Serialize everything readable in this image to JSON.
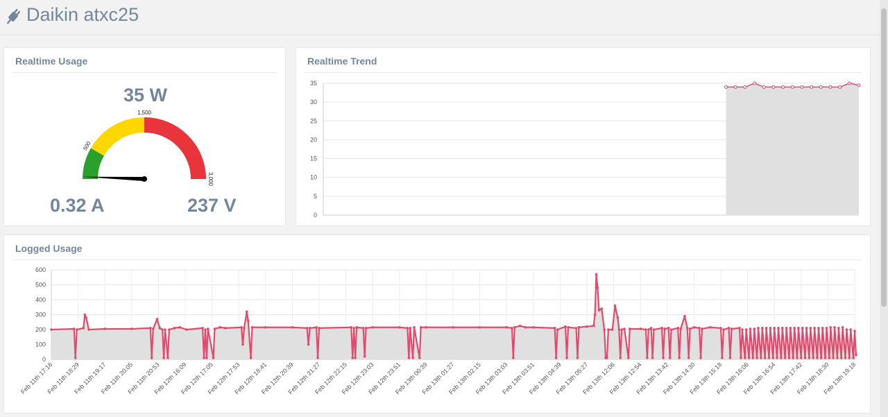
{
  "app": {
    "title": "Daikin atxc25"
  },
  "panels": {
    "usage": "Realtime Usage",
    "trend": "Realtime Trend",
    "logged": "Logged Usage"
  },
  "gauge": {
    "power": "35 W",
    "current": "0.32 A",
    "voltage": "237 V",
    "value": 35,
    "min": 0,
    "max": 3000,
    "bands": [
      {
        "from": 0,
        "to": 500,
        "color": "#2ca02c"
      },
      {
        "from": 500,
        "to": 1500,
        "color": "#ffd700"
      },
      {
        "from": 1500,
        "to": 3000,
        "color": "#e8343b"
      }
    ],
    "ticks": [
      "500",
      "1,500",
      "3,000"
    ]
  },
  "chart_data": [
    {
      "type": "area",
      "name": "realtime-trend",
      "ylim": [
        0,
        35
      ],
      "yticks": [
        0,
        5,
        10,
        15,
        20,
        25,
        30,
        35
      ],
      "grid": true,
      "series_color": "#e24a6b",
      "fill_color": "#e0e0e0",
      "x_start_fraction": 0.752,
      "values": [
        34,
        34,
        34,
        35,
        34,
        34,
        34,
        34,
        34,
        34,
        34,
        34,
        34,
        35,
        34.5
      ]
    },
    {
      "type": "area",
      "name": "logged-usage",
      "ylim": [
        0,
        600
      ],
      "yticks": [
        0,
        100,
        200,
        300,
        400,
        500,
        600
      ],
      "grid": true,
      "series_color": "#e24a6b",
      "fill_color": "#e0e0e0",
      "categories": [
        "Feb 11th 17:16",
        "Feb 11th 18:29",
        "Feb 11th 19:17",
        "Feb 11th 20:05",
        "Feb 11th 20:53",
        "Feb 12th 16:09",
        "Feb 12th 17:05",
        "Feb 12th 17:53",
        "Feb 12th 18:41",
        "Feb 12th 20:39",
        "Feb 12th 21:27",
        "Feb 12th 22:15",
        "Feb 12th 23:03",
        "Feb 12th 23:51",
        "Feb 13th 00:39",
        "Feb 13th 01:27",
        "Feb 13th 02:15",
        "Feb 13th 03:03",
        "Feb 13th 03:51",
        "Feb 13th 04:39",
        "Feb 13th 05:27",
        "Feb 13th 12:06",
        "Feb 13th 12:54",
        "Feb 13th 13:42",
        "Feb 13th 14:30",
        "Feb 13th 15:18",
        "Feb 13th 16:06",
        "Feb 13th 16:54",
        "Feb 13th 17:42",
        "Feb 13th 18:30",
        "Feb 13th 19:18"
      ],
      "points": [
        [
          0,
          200
        ],
        [
          0.85,
          205
        ],
        [
          0.9,
          10
        ],
        [
          0.95,
          200
        ],
        [
          1.2,
          210
        ],
        [
          1.25,
          300
        ],
        [
          1.3,
          280
        ],
        [
          1.4,
          200
        ],
        [
          2,
          205
        ],
        [
          3,
          205
        ],
        [
          3.7,
          210
        ],
        [
          3.75,
          10
        ],
        [
          3.8,
          205
        ],
        [
          3.95,
          270
        ],
        [
          4.05,
          210
        ],
        [
          4.15,
          200
        ],
        [
          4.2,
          10
        ],
        [
          4.25,
          200
        ],
        [
          4.35,
          10
        ],
        [
          4.4,
          200
        ],
        [
          4.6,
          210
        ],
        [
          4.8,
          215
        ],
        [
          5.05,
          200
        ],
        [
          5.65,
          210
        ],
        [
          5.7,
          10
        ],
        [
          5.75,
          200
        ],
        [
          5.8,
          10
        ],
        [
          5.85,
          205
        ],
        [
          6.05,
          10
        ],
        [
          6.1,
          205
        ],
        [
          6.3,
          215
        ],
        [
          6.5,
          210
        ],
        [
          7.1,
          215
        ],
        [
          7.15,
          100
        ],
        [
          7.2,
          210
        ],
        [
          7.3,
          320
        ],
        [
          7.35,
          260
        ],
        [
          7.45,
          10
        ],
        [
          7.5,
          215
        ],
        [
          8,
          215
        ],
        [
          9,
          215
        ],
        [
          9.55,
          210
        ],
        [
          9.6,
          100
        ],
        [
          9.65,
          210
        ],
        [
          9.9,
          215
        ],
        [
          9.95,
          10
        ],
        [
          10,
          210
        ],
        [
          11.2,
          215
        ],
        [
          11.25,
          10
        ],
        [
          11.3,
          210
        ],
        [
          11.35,
          10
        ],
        [
          11.4,
          215
        ],
        [
          11.65,
          210
        ],
        [
          11.7,
          20
        ],
        [
          11.75,
          210
        ],
        [
          12,
          215
        ],
        [
          13,
          215
        ],
        [
          13.3,
          210
        ],
        [
          13.35,
          10
        ],
        [
          13.4,
          210
        ],
        [
          13.5,
          10
        ],
        [
          13.55,
          215
        ],
        [
          13.75,
          10
        ],
        [
          13.8,
          215
        ],
        [
          14,
          215
        ],
        [
          15,
          215
        ],
        [
          16,
          215
        ],
        [
          17,
          215
        ],
        [
          17.2,
          210
        ],
        [
          17.25,
          10
        ],
        [
          17.3,
          215
        ],
        [
          17.5,
          225
        ],
        [
          17.7,
          215
        ],
        [
          18,
          215
        ],
        [
          18.8,
          210
        ],
        [
          18.85,
          10
        ],
        [
          18.9,
          200
        ],
        [
          19.2,
          220
        ],
        [
          19.25,
          10
        ],
        [
          19.3,
          215
        ],
        [
          19.6,
          210
        ],
        [
          19.65,
          10
        ],
        [
          19.7,
          215
        ],
        [
          20,
          220
        ],
        [
          20.25,
          225
        ],
        [
          20.3,
          300
        ],
        [
          20.35,
          570
        ],
        [
          20.4,
          480
        ],
        [
          20.45,
          330
        ],
        [
          20.55,
          340
        ],
        [
          20.65,
          200
        ],
        [
          20.7,
          10
        ],
        [
          20.75,
          10
        ],
        [
          20.8,
          200
        ],
        [
          20.95,
          200
        ],
        [
          21.05,
          360
        ],
        [
          21.15,
          280
        ],
        [
          21.2,
          200
        ],
        [
          21.25,
          10
        ],
        [
          21.3,
          200
        ],
        [
          21.4,
          205
        ],
        [
          21.55,
          10
        ],
        [
          21.6,
          205
        ],
        [
          22,
          205
        ],
        [
          22.2,
          200
        ],
        [
          22.25,
          10
        ],
        [
          22.3,
          200
        ],
        [
          22.4,
          210
        ],
        [
          22.45,
          10
        ],
        [
          22.5,
          200
        ],
        [
          22.8,
          210
        ],
        [
          22.85,
          10
        ],
        [
          22.9,
          205
        ],
        [
          23.05,
          210
        ],
        [
          23.1,
          10
        ],
        [
          23.15,
          200
        ],
        [
          23.4,
          210
        ],
        [
          23.45,
          10
        ],
        [
          23.5,
          205
        ],
        [
          23.65,
          290
        ],
        [
          23.75,
          210
        ],
        [
          23.8,
          10
        ],
        [
          23.85,
          205
        ],
        [
          24,
          215
        ],
        [
          24.2,
          210
        ],
        [
          24.25,
          10
        ],
        [
          24.3,
          205
        ],
        [
          24.6,
          215
        ],
        [
          25,
          210
        ],
        [
          25.05,
          10
        ],
        [
          25.1,
          200
        ],
        [
          25.3,
          210
        ],
        [
          25.35,
          10
        ],
        [
          25.4,
          205
        ],
        [
          25.7,
          210
        ],
        [
          25.75,
          10
        ],
        [
          25.8,
          200
        ],
        [
          25.9,
          10
        ],
        [
          25.95,
          200
        ],
        [
          26.05,
          10
        ],
        [
          26.1,
          205
        ],
        [
          26.2,
          10
        ],
        [
          26.25,
          205
        ],
        [
          26.35,
          10
        ],
        [
          26.4,
          210
        ],
        [
          26.5,
          10
        ],
        [
          26.55,
          210
        ],
        [
          26.65,
          10
        ],
        [
          26.7,
          210
        ],
        [
          26.8,
          10
        ],
        [
          26.85,
          210
        ],
        [
          26.95,
          10
        ],
        [
          27,
          210
        ],
        [
          27.1,
          10
        ],
        [
          27.15,
          210
        ],
        [
          27.25,
          10
        ],
        [
          27.3,
          210
        ],
        [
          27.4,
          10
        ],
        [
          27.45,
          210
        ],
        [
          27.55,
          10
        ],
        [
          27.6,
          210
        ],
        [
          27.7,
          10
        ],
        [
          27.75,
          210
        ],
        [
          27.85,
          10
        ],
        [
          27.9,
          210
        ],
        [
          28,
          10
        ],
        [
          28.05,
          210
        ],
        [
          28.15,
          10
        ],
        [
          28.2,
          210
        ],
        [
          28.3,
          10
        ],
        [
          28.35,
          210
        ],
        [
          28.45,
          10
        ],
        [
          28.5,
          210
        ],
        [
          28.6,
          10
        ],
        [
          28.65,
          210
        ],
        [
          28.75,
          10
        ],
        [
          28.8,
          210
        ],
        [
          28.9,
          10
        ],
        [
          28.95,
          210
        ],
        [
          29.05,
          10
        ],
        [
          29.1,
          215
        ],
        [
          29.2,
          10
        ],
        [
          29.25,
          215
        ],
        [
          29.35,
          10
        ],
        [
          29.4,
          210
        ],
        [
          29.5,
          10
        ],
        [
          29.55,
          215
        ],
        [
          29.65,
          10
        ],
        [
          29.7,
          200
        ],
        [
          29.8,
          10
        ],
        [
          29.85,
          200
        ],
        [
          29.95,
          10
        ],
        [
          30,
          190
        ],
        [
          30.05,
          30
        ]
      ]
    }
  ]
}
